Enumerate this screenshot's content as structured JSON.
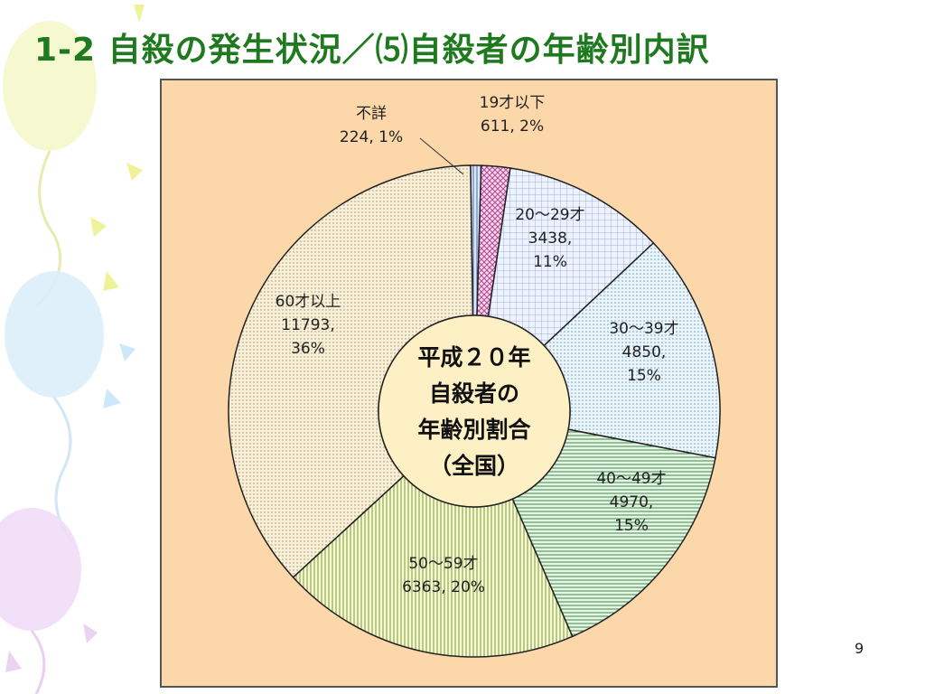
{
  "slide": {
    "title": "1-2 自殺の発生状況／⑸自殺者の年齢別内訳",
    "page_number": "9"
  },
  "colors": {
    "title": "#1f7a1f",
    "panel": "#fbd7aa",
    "center": "#fdf0c4"
  },
  "chart_data": {
    "type": "pie",
    "style": "donut",
    "center_text": [
      "平成２０年",
      "自殺者の",
      "年齢別割合",
      "（全国）"
    ],
    "slices": [
      {
        "category": "不詳",
        "value": 224,
        "percent": 1,
        "label_lines": [
          "不詳",
          "224, 1%"
        ],
        "pattern": "stripes-v-blue"
      },
      {
        "category": "19才以下",
        "value": 611,
        "percent": 2,
        "label_lines": [
          "19才以下",
          "611, 2%"
        ],
        "pattern": "crosshatch-pink"
      },
      {
        "category": "20〜29才",
        "value": 3438,
        "percent": 11,
        "label_lines": [
          "20〜29才",
          "3438,",
          "11%"
        ],
        "pattern": "grid-blue"
      },
      {
        "category": "30〜39才",
        "value": 4850,
        "percent": 15,
        "label_lines": [
          "30〜39才",
          "4850,",
          "15%"
        ],
        "pattern": "dots-blue"
      },
      {
        "category": "40〜49才",
        "value": 4970,
        "percent": 15,
        "label_lines": [
          "40〜49才",
          "4970,",
          "15%"
        ],
        "pattern": "stripes-h-green"
      },
      {
        "category": "50〜59才",
        "value": 6363,
        "percent": 20,
        "label_lines": [
          "50〜59才",
          "6363, 20%"
        ],
        "pattern": "stripes-v-yellow"
      },
      {
        "category": "60才以上",
        "value": 11793,
        "percent": 36,
        "label_lines": [
          "60才以上",
          "11793,",
          "36%"
        ],
        "pattern": "dots-beige"
      }
    ]
  }
}
